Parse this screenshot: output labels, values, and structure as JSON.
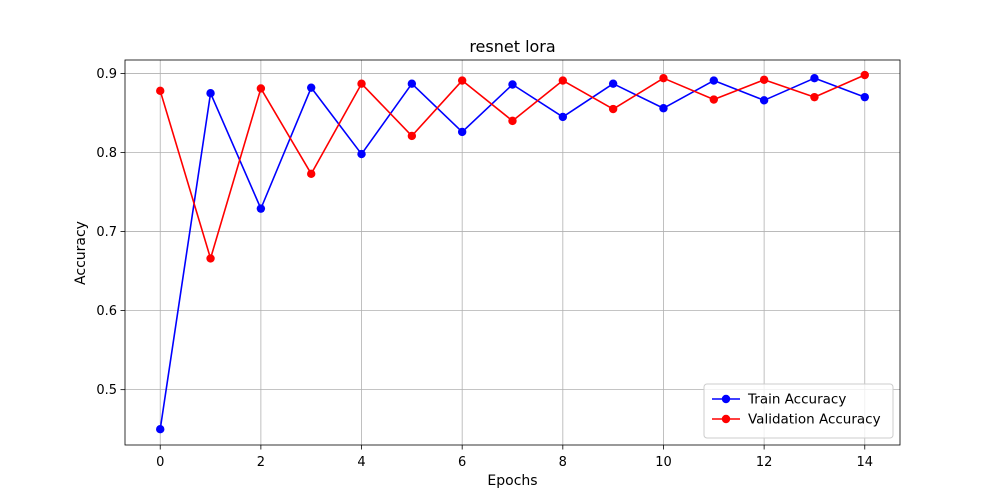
{
  "chart_data": {
    "type": "line",
    "title": "resnet lora",
    "xlabel": "Epochs",
    "ylabel": "Accuracy",
    "xlim": [
      -0.7,
      14.7
    ],
    "ylim": [
      0.43,
      0.917
    ],
    "xticks": [
      0,
      2,
      4,
      6,
      8,
      10,
      12,
      14
    ],
    "yticks": [
      0.5,
      0.6,
      0.7,
      0.8,
      0.9
    ],
    "grid": true,
    "legend_position": "bottom-right",
    "x": [
      0,
      1,
      2,
      3,
      4,
      5,
      6,
      7,
      8,
      9,
      10,
      11,
      12,
      13,
      14
    ],
    "series": [
      {
        "name": "Train Accuracy",
        "color": "#0000ff",
        "marker": "circle",
        "values": [
          0.45,
          0.875,
          0.729,
          0.882,
          0.798,
          0.887,
          0.826,
          0.886,
          0.845,
          0.887,
          0.856,
          0.891,
          0.866,
          0.894,
          0.87
        ]
      },
      {
        "name": "Validation Accuracy",
        "color": "#ff0000",
        "marker": "circle",
        "values": [
          0.878,
          0.666,
          0.881,
          0.773,
          0.887,
          0.821,
          0.891,
          0.84,
          0.891,
          0.855,
          0.894,
          0.867,
          0.892,
          0.87,
          0.898
        ]
      }
    ]
  }
}
